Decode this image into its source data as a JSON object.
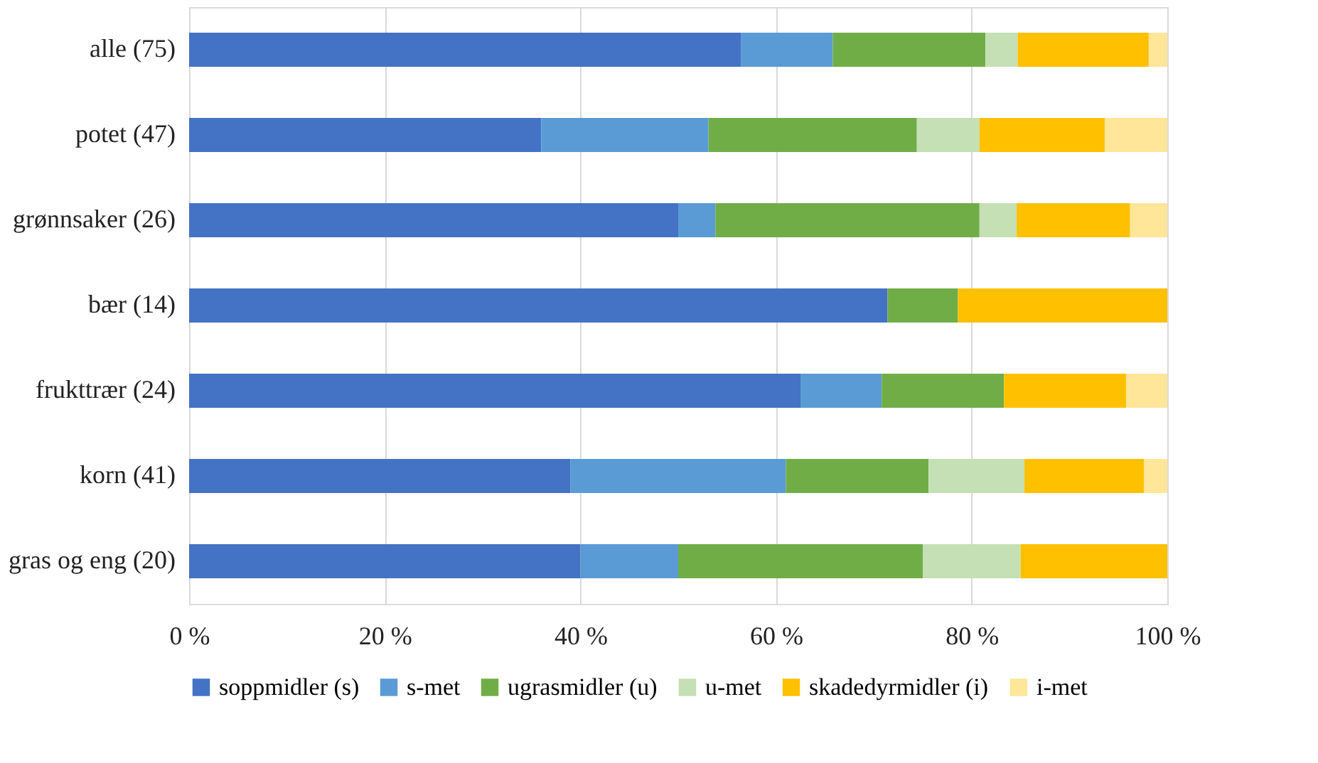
{
  "chart_data": {
    "type": "bar",
    "orientation": "horizontal",
    "stacked": true,
    "categories": [
      "alle (75)",
      "potet (47)",
      "grønnsaker (26)",
      "bær (14)",
      "frukttrær (24)",
      "korn (41)",
      "gras og eng (20)"
    ],
    "series": [
      {
        "name": "soppmidler (s)",
        "color": "#4472c4",
        "values": [
          56.4,
          36.0,
          50.0,
          71.4,
          62.5,
          39.0,
          40.0
        ]
      },
      {
        "name": "s-met",
        "color": "#5b9bd5",
        "values": [
          9.4,
          17.1,
          3.8,
          0,
          8.3,
          22.0,
          10.0
        ]
      },
      {
        "name": "ugrasmidler (u)",
        "color": "#70ad47",
        "values": [
          15.6,
          21.3,
          27.0,
          7.2,
          12.5,
          14.6,
          25.0
        ]
      },
      {
        "name": "u-met",
        "color": "#c5e0b4",
        "values": [
          3.3,
          6.4,
          3.8,
          0,
          0,
          9.8,
          10.0
        ]
      },
      {
        "name": "skadedyrmidler (i)",
        "color": "#ffc000",
        "values": [
          13.4,
          12.8,
          11.6,
          21.4,
          12.5,
          12.2,
          15.0
        ]
      },
      {
        "name": "i-met",
        "color": "#ffe699",
        "values": [
          1.9,
          6.4,
          3.8,
          0,
          4.2,
          2.4,
          0
        ]
      }
    ],
    "xlim": [
      0,
      100
    ],
    "xticks": [
      {
        "value": 0,
        "label": "0 %"
      },
      {
        "value": 20,
        "label": "20 %"
      },
      {
        "value": 40,
        "label": "40 %"
      },
      {
        "value": 60,
        "label": "60 %"
      },
      {
        "value": 80,
        "label": "80 %"
      },
      {
        "value": 100,
        "label": "100 %"
      }
    ],
    "grid": "x",
    "legend": "bottom"
  }
}
